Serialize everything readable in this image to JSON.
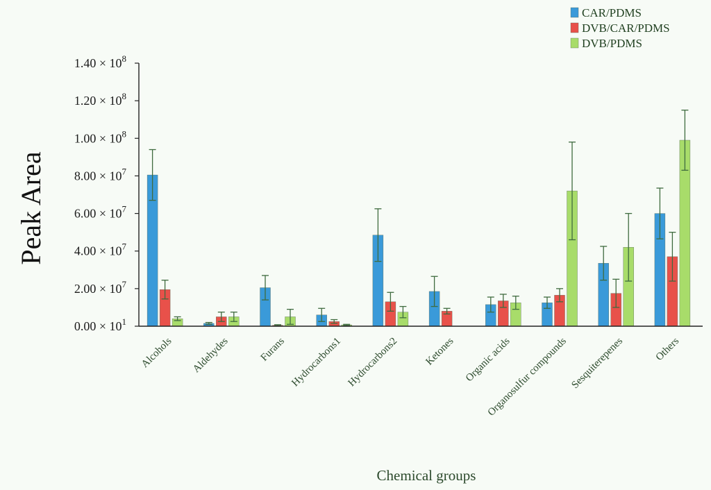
{
  "chart_data": {
    "type": "bar",
    "title": "",
    "xlabel": "Chemical groups",
    "ylabel": "Peak Area",
    "ylim": [
      0,
      140000000
    ],
    "yticks": [
      {
        "value": 0,
        "mantissa": "0.00",
        "exp": "1"
      },
      {
        "value": 20000000,
        "mantissa": "2.00",
        "exp": "7"
      },
      {
        "value": 40000000,
        "mantissa": "4.00",
        "exp": "7"
      },
      {
        "value": 60000000,
        "mantissa": "6.00",
        "exp": "7"
      },
      {
        "value": 80000000,
        "mantissa": "8.00",
        "exp": "7"
      },
      {
        "value": 100000000,
        "mantissa": "1.00",
        "exp": "8"
      },
      {
        "value": 120000000,
        "mantissa": "1.20",
        "exp": "8"
      },
      {
        "value": 140000000,
        "mantissa": "1.40",
        "exp": "8"
      }
    ],
    "tick_times": "×",
    "tick_base": "10",
    "categories": [
      "Alcohols",
      "Aldehydes",
      "Furans",
      "Hydrocarbons1",
      "Hydrocarbons2",
      "Ketones",
      "Organic acids",
      "Organosulfur compounds",
      "Sesquiterepenes",
      "Others"
    ],
    "series": [
      {
        "name": "CAR/PDMS",
        "color": "#3a9ad9",
        "values": [
          80500000,
          1500000,
          20500000,
          6000000,
          48500000,
          18500000,
          11500000,
          12500000,
          33500000,
          60000000
        ],
        "errors": [
          13500000,
          500000,
          6500000,
          3500000,
          14000000,
          8000000,
          4000000,
          3000000,
          9000000,
          13500000
        ]
      },
      {
        "name": "DVB/CAR/PDMS",
        "color": "#e8514a",
        "values": [
          19500000,
          5000000,
          500000,
          2500000,
          13000000,
          8000000,
          13500000,
          16500000,
          17500000,
          37000000
        ],
        "errors": [
          5000000,
          2500000,
          300000,
          1000000,
          5000000,
          1500000,
          3500000,
          3500000,
          7500000,
          13000000
        ]
      },
      {
        "name": "DVB/PDMS",
        "color": "#a8dc6a",
        "values": [
          4000000,
          5000000,
          5000000,
          700000,
          7500000,
          0,
          12500000,
          72000000,
          42000000,
          99000000
        ],
        "errors": [
          1000000,
          2500000,
          4000000,
          300000,
          3000000,
          0,
          3500000,
          26000000,
          18000000,
          16000000
        ]
      }
    ],
    "error_color": "#3f6b3f",
    "legend": {
      "position": "top-right"
    },
    "grid": false
  }
}
